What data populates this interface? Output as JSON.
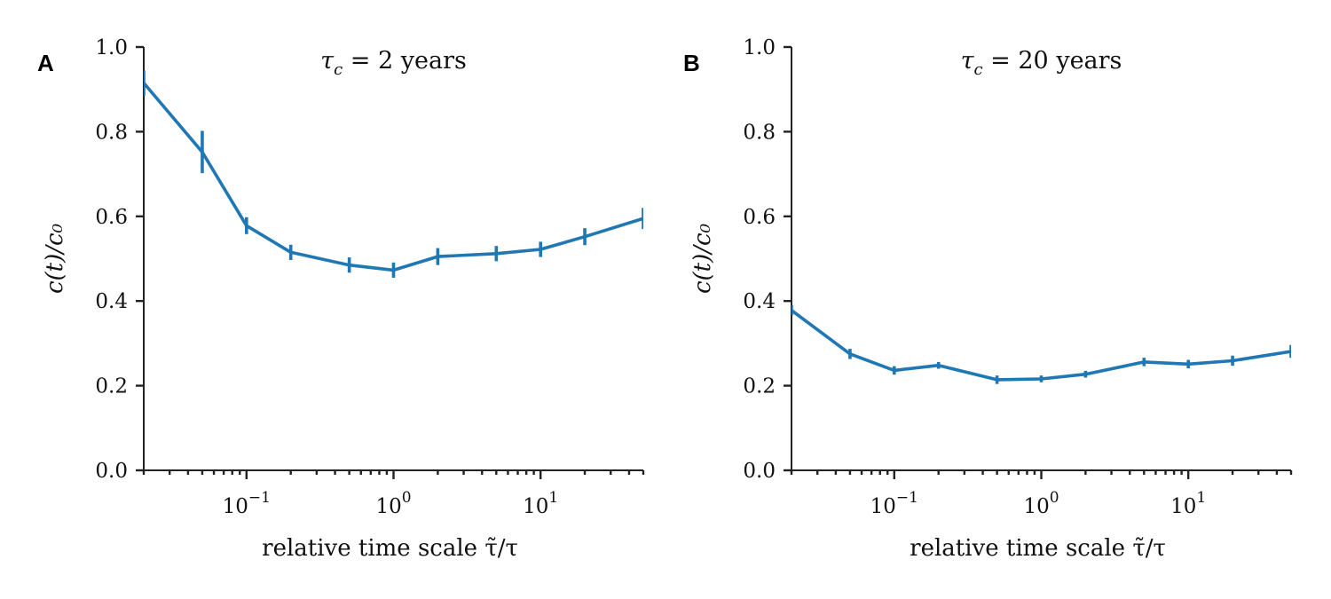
{
  "chart_data": [
    {
      "type": "line",
      "panel": "A",
      "title": "τ_c = 2 years",
      "xlabel": "relative time scale τ̃/τ",
      "ylabel": "c(t)/c₀",
      "xscale": "log",
      "xlim": [
        0.02,
        50
      ],
      "ylim": [
        0,
        1
      ],
      "yticks": [
        "0.0",
        "0.2",
        "0.4",
        "0.6",
        "0.8",
        "1.0"
      ],
      "xticks": [
        {
          "value": 0.1,
          "base": "10",
          "exp": "−1"
        },
        {
          "value": 1,
          "base": "10",
          "exp": "0"
        },
        {
          "value": 10,
          "base": "10",
          "exp": "1"
        }
      ],
      "grid": false,
      "color": "#1f77b4",
      "series": [
        {
          "x": [
            0.02,
            0.05,
            0.1,
            0.2,
            0.5,
            1,
            2,
            5,
            10,
            20,
            50
          ],
          "y": [
            0.915,
            0.752,
            0.578,
            0.515,
            0.485,
            0.473,
            0.505,
            0.512,
            0.522,
            0.552,
            0.595
          ],
          "err": [
            0.03,
            0.05,
            0.02,
            0.018,
            0.018,
            0.018,
            0.02,
            0.018,
            0.018,
            0.02,
            0.025
          ]
        }
      ]
    },
    {
      "type": "line",
      "panel": "B",
      "title": "τ_c = 20 years",
      "xlabel": "relative time scale τ̃/τ",
      "ylabel": "c(t)/c₀",
      "xscale": "log",
      "xlim": [
        0.02,
        50
      ],
      "ylim": [
        0,
        1
      ],
      "yticks": [
        "0.0",
        "0.2",
        "0.4",
        "0.6",
        "0.8",
        "1.0"
      ],
      "xticks": [
        {
          "value": 0.1,
          "base": "10",
          "exp": "−1"
        },
        {
          "value": 1,
          "base": "10",
          "exp": "0"
        },
        {
          "value": 10,
          "base": "10",
          "exp": "1"
        }
      ],
      "grid": false,
      "color": "#1f77b4",
      "series": [
        {
          "x": [
            0.02,
            0.05,
            0.1,
            0.2,
            0.5,
            1,
            2,
            5,
            10,
            20,
            50
          ],
          "y": [
            0.378,
            0.275,
            0.236,
            0.248,
            0.214,
            0.216,
            0.227,
            0.256,
            0.251,
            0.259,
            0.281
          ],
          "err": [
            0.012,
            0.012,
            0.01,
            0.008,
            0.01,
            0.008,
            0.008,
            0.01,
            0.01,
            0.012,
            0.015
          ]
        }
      ]
    }
  ]
}
